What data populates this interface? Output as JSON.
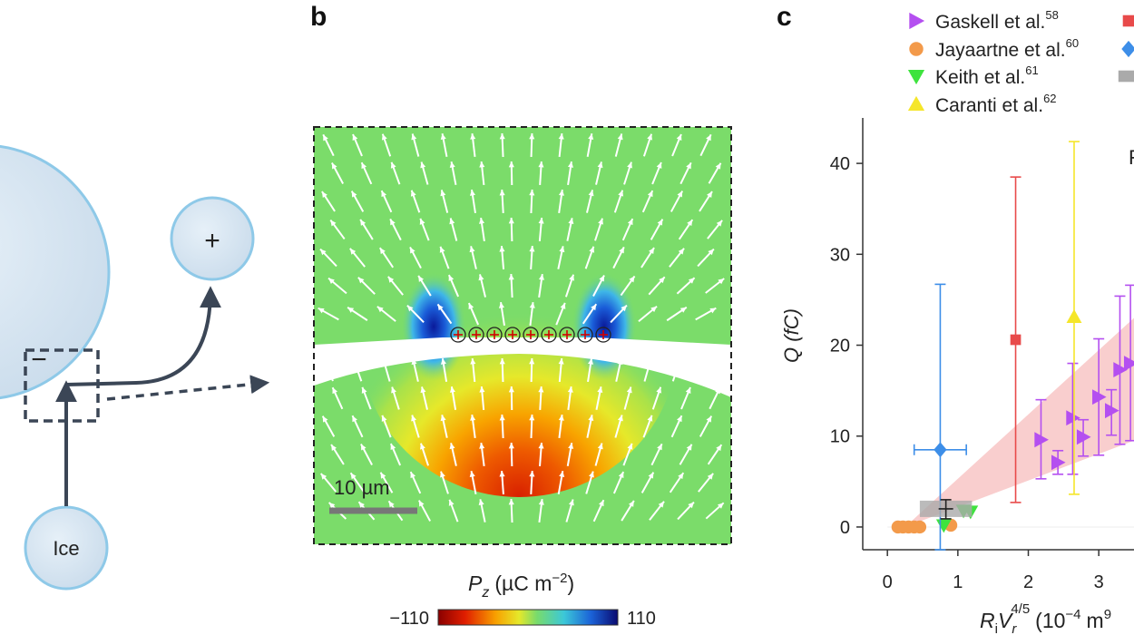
{
  "panel_a": {
    "large_sign": "−",
    "small_sign": "+",
    "ice_label": "Ice"
  },
  "panel_b": {
    "letter": "b",
    "scale_bar_label": "10 µm",
    "colorbar_label": "P",
    "colorbar_sub": "z",
    "colorbar_unit": "(µC m",
    "colorbar_unit_exp": "−2",
    "colorbar_unit_close": ")",
    "colorbar_min": "−110",
    "colorbar_max": "110",
    "colors": {
      "field": "#7bdc6a",
      "scale_bar": "#777777",
      "frame": "#333333"
    }
  },
  "panel_c": {
    "letter": "c",
    "legend": [
      {
        "label": "Gaskell et al.",
        "ref": "58",
        "marker": "triangle-right",
        "color": "#b44ff0"
      },
      {
        "label": "Jayaartne et al.",
        "ref": "60",
        "marker": "circle",
        "color": "#f39a4a"
      },
      {
        "label": "Keith et al.",
        "ref": "61",
        "marker": "triangle-down",
        "color": "#3ee33e"
      },
      {
        "label": "Caranti et al.",
        "ref": "62",
        "marker": "triangle-up",
        "color": "#f5e62a"
      },
      {
        "label": "",
        "ref": "",
        "marker": "square",
        "color": "#e84a4a"
      },
      {
        "label": "",
        "ref": "",
        "marker": "diamond",
        "color": "#3d8ee8"
      },
      {
        "label": "",
        "ref": "",
        "marker": "rect",
        "color": "#aaaaaa"
      }
    ],
    "ylabel": "Q (fC)",
    "xlabel_main": "R",
    "xlabel_sub1": "i",
    "xlabel_v": "V",
    "xlabel_sub2": "r",
    "xlabel_exp": "4/5",
    "xlabel_unit": "(10",
    "xlabel_unit_exp": "−4",
    "xlabel_unit_tail": "m",
    "xlabel_unit_exp2": "9",
    "partial_label": "F"
  },
  "chart_data": {
    "type": "scatter",
    "xlabel": "R_i V_r^4/5 (10^-4 m^9...)",
    "ylabel": "Q (fC)",
    "xlim": [
      -0.35,
      3.5
    ],
    "ylim": [
      -2.5,
      45
    ],
    "xticks": [
      "0",
      "1",
      "2",
      "3"
    ],
    "yticks": [
      "0",
      "10",
      "20",
      "30",
      "40"
    ],
    "series": [
      {
        "name": "Gaskell et al.",
        "points": [
          {
            "x": 2.18,
            "y": 9.6,
            "ylo": 5.3,
            "yhi": 14.0
          },
          {
            "x": 2.42,
            "y": 7.1,
            "ylo": 5.8,
            "yhi": 8.4
          },
          {
            "x": 2.63,
            "y": 12.0,
            "ylo": 5.8,
            "yhi": 18.0
          },
          {
            "x": 2.78,
            "y": 9.9,
            "ylo": 7.8,
            "yhi": 11.8
          },
          {
            "x": 3.0,
            "y": 14.3,
            "ylo": 7.9,
            "yhi": 20.7
          },
          {
            "x": 3.18,
            "y": 12.8,
            "ylo": 10.1,
            "yhi": 15.1
          },
          {
            "x": 3.3,
            "y": 17.3,
            "ylo": 9.1,
            "yhi": 25.4
          },
          {
            "x": 3.45,
            "y": 18.0,
            "ylo": 9.5,
            "yhi": 26.6
          }
        ]
      },
      {
        "name": "Jayaartne et al.",
        "points": [
          {
            "x": 0.15,
            "y": 0.0
          },
          {
            "x": 0.22,
            "y": 0.0
          },
          {
            "x": 0.3,
            "y": 0.0
          },
          {
            "x": 0.38,
            "y": 0.0
          },
          {
            "x": 0.46,
            "y": 0.0
          },
          {
            "x": 0.9,
            "y": 0.2
          }
        ]
      },
      {
        "name": "Keith et al.",
        "points": [
          {
            "x": 0.8,
            "y": 0.2
          },
          {
            "x": 1.08,
            "y": 1.8
          },
          {
            "x": 1.18,
            "y": 1.7
          }
        ]
      },
      {
        "name": "Caranti et al.",
        "points": [
          {
            "x": 2.65,
            "y": 23.1,
            "ylo": 3.6,
            "yhi": 42.4
          }
        ]
      },
      {
        "name": "",
        "points": [
          {
            "x": 1.82,
            "y": 20.6,
            "ylo": 2.7,
            "yhi": 38.5
          }
        ]
      },
      {
        "name": "",
        "points": [
          {
            "x": 0.75,
            "y": 8.5,
            "ylo": -2.5,
            "yhi": 26.7,
            "xlo": 0.38,
            "xhi": 1.12
          }
        ]
      },
      {
        "name": "",
        "points": [
          {
            "x": 0.83,
            "y": 2.0,
            "ylo": 0.9,
            "yhi": 3.0,
            "xlo": 0.46,
            "xhi": 1.2
          }
        ]
      }
    ]
  }
}
